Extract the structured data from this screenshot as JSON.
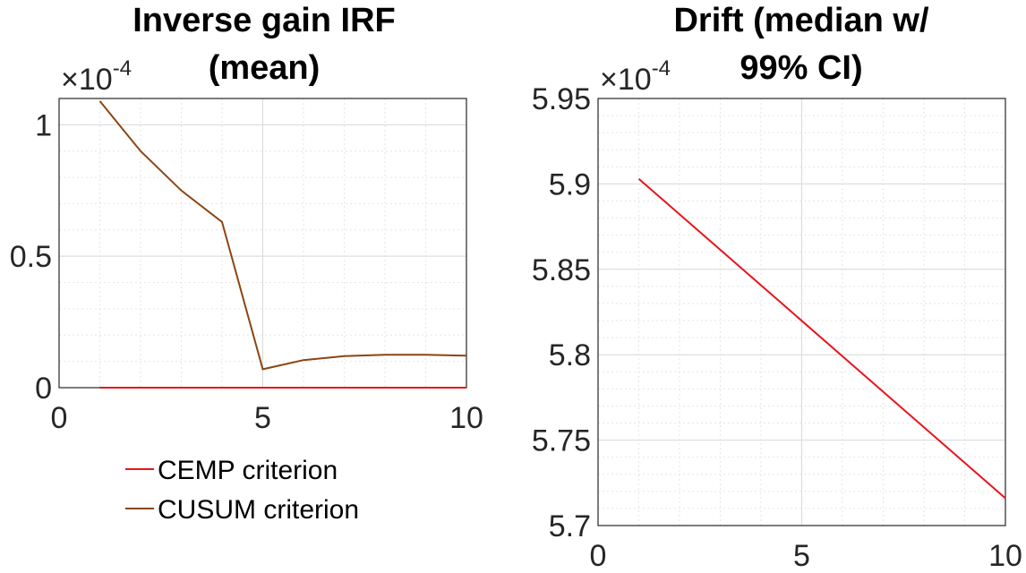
{
  "chart_data": [
    {
      "type": "line",
      "title_lines": [
        "Inverse gain IRF",
        "(mean)"
      ],
      "xlabel": "",
      "ylabel": "",
      "exponent_label": "×10",
      "exponent_power": "-4",
      "xlim": [
        0,
        10
      ],
      "ylim": [
        0,
        1.1
      ],
      "xticks": [
        0,
        5,
        10
      ],
      "xtick_labels": [
        "0",
        "5",
        "10"
      ],
      "yticks": [
        0,
        0.5,
        1
      ],
      "ytick_labels": [
        "0",
        "0.5",
        "1"
      ],
      "grid": true,
      "legend": "below",
      "series": [
        {
          "name": "CEMP criterion",
          "color": "#e8141b",
          "x": [
            1,
            2,
            3,
            4,
            5,
            6,
            7,
            8,
            9,
            10
          ],
          "y": [
            0,
            0,
            0,
            0,
            0,
            0,
            0,
            0,
            0,
            0
          ]
        },
        {
          "name": "CUSUM criterion",
          "color": "#8b4513",
          "x": [
            1,
            2,
            3,
            4,
            5,
            6,
            7,
            8,
            9,
            10
          ],
          "y": [
            1.09,
            0.9,
            0.75,
            0.63,
            0.07,
            0.105,
            0.12,
            0.125,
            0.125,
            0.122
          ]
        }
      ]
    },
    {
      "type": "line",
      "title_lines": [
        "Drift (median w/",
        "99% CI)"
      ],
      "xlabel": "",
      "ylabel": "",
      "exponent_label": "×10",
      "exponent_power": "-4",
      "xlim": [
        0,
        10
      ],
      "ylim": [
        5.7,
        5.95
      ],
      "xticks": [
        0,
        5,
        10
      ],
      "xtick_labels": [
        "0",
        "5",
        "10"
      ],
      "yticks": [
        5.7,
        5.75,
        5.8,
        5.85,
        5.9,
        5.95
      ],
      "ytick_labels": [
        "5.7",
        "5.75",
        "5.8",
        "5.85",
        "5.9",
        "5.95"
      ],
      "grid": true,
      "series": [
        {
          "color": "#e8141b",
          "x": [
            1,
            10
          ],
          "y": [
            5.903,
            5.716
          ]
        }
      ]
    }
  ]
}
